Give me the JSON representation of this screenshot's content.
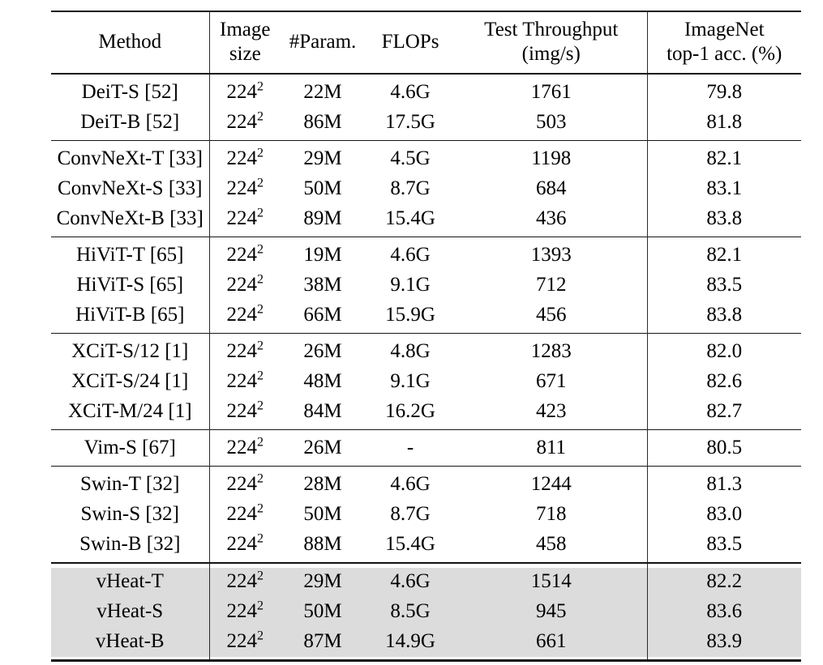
{
  "page": {
    "background": "#ffffff",
    "text_color": "#000000",
    "rule_color": "#121212",
    "highlight_color": "#dcdcdc"
  },
  "table": {
    "header": [
      {
        "key": "method",
        "lines": [
          "Method"
        ]
      },
      {
        "key": "image-size",
        "lines": [
          "Image",
          "size"
        ]
      },
      {
        "key": "params",
        "lines": [
          "#Param."
        ]
      },
      {
        "key": "flops",
        "lines": [
          "FLOPs"
        ]
      },
      {
        "key": "throughput",
        "lines": [
          "Test Throughput",
          "(img/s)"
        ]
      },
      {
        "key": "imagenet-acc",
        "lines": [
          "ImageNet",
          "top-1 acc. (%)"
        ]
      }
    ],
    "groups": [
      {
        "name": "deit",
        "highlight": false,
        "rows": [
          {
            "method": "DeiT-S [52]",
            "image_size": {
              "base": "224",
              "exp": "2"
            },
            "params": "22M",
            "flops": "4.6G",
            "throughput": "1761",
            "acc": "79.8"
          },
          {
            "method": "DeiT-B [52]",
            "image_size": {
              "base": "224",
              "exp": "2"
            },
            "params": "86M",
            "flops": "17.5G",
            "throughput": "503",
            "acc": "81.8"
          }
        ]
      },
      {
        "name": "convnext",
        "highlight": false,
        "rows": [
          {
            "method": "ConvNeXt-T [33]",
            "image_size": {
              "base": "224",
              "exp": "2"
            },
            "params": "29M",
            "flops": "4.5G",
            "throughput": "1198",
            "acc": "82.1"
          },
          {
            "method": "ConvNeXt-S [33]",
            "image_size": {
              "base": "224",
              "exp": "2"
            },
            "params": "50M",
            "flops": "8.7G",
            "throughput": "684",
            "acc": "83.1"
          },
          {
            "method": "ConvNeXt-B [33]",
            "image_size": {
              "base": "224",
              "exp": "2"
            },
            "params": "89M",
            "flops": "15.4G",
            "throughput": "436",
            "acc": "83.8"
          }
        ]
      },
      {
        "name": "hivit",
        "highlight": false,
        "rows": [
          {
            "method": "HiViT-T [65]",
            "image_size": {
              "base": "224",
              "exp": "2"
            },
            "params": "19M",
            "flops": "4.6G",
            "throughput": "1393",
            "acc": "82.1"
          },
          {
            "method": "HiViT-S [65]",
            "image_size": {
              "base": "224",
              "exp": "2"
            },
            "params": "38M",
            "flops": "9.1G",
            "throughput": "712",
            "acc": "83.5"
          },
          {
            "method": "HiViT-B [65]",
            "image_size": {
              "base": "224",
              "exp": "2"
            },
            "params": "66M",
            "flops": "15.9G",
            "throughput": "456",
            "acc": "83.8"
          }
        ]
      },
      {
        "name": "xcit",
        "highlight": false,
        "rows": [
          {
            "method": "XCiT-S/12 [1]",
            "image_size": {
              "base": "224",
              "exp": "2"
            },
            "params": "26M",
            "flops": "4.8G",
            "throughput": "1283",
            "acc": "82.0"
          },
          {
            "method": "XCiT-S/24 [1]",
            "image_size": {
              "base": "224",
              "exp": "2"
            },
            "params": "48M",
            "flops": "9.1G",
            "throughput": "671",
            "acc": "82.6"
          },
          {
            "method": "XCiT-M/24 [1]",
            "image_size": {
              "base": "224",
              "exp": "2"
            },
            "params": "84M",
            "flops": "16.2G",
            "throughput": "423",
            "acc": "82.7"
          }
        ]
      },
      {
        "name": "vim",
        "highlight": false,
        "rows": [
          {
            "method": "Vim-S [67]",
            "image_size": {
              "base": "224",
              "exp": "2"
            },
            "params": "26M",
            "flops": "-",
            "throughput": "811",
            "acc": "80.5"
          }
        ]
      },
      {
        "name": "swin",
        "highlight": false,
        "rows": [
          {
            "method": "Swin-T [32]",
            "image_size": {
              "base": "224",
              "exp": "2"
            },
            "params": "28M",
            "flops": "4.6G",
            "throughput": "1244",
            "acc": "81.3"
          },
          {
            "method": "Swin-S [32]",
            "image_size": {
              "base": "224",
              "exp": "2"
            },
            "params": "50M",
            "flops": "8.7G",
            "throughput": "718",
            "acc": "83.0"
          },
          {
            "method": "Swin-B [32]",
            "image_size": {
              "base": "224",
              "exp": "2"
            },
            "params": "88M",
            "flops": "15.4G",
            "throughput": "458",
            "acc": "83.5"
          }
        ]
      },
      {
        "name": "vheat",
        "highlight": true,
        "rows": [
          {
            "method": "vHeat-T",
            "image_size": {
              "base": "224",
              "exp": "2"
            },
            "params": "29M",
            "flops": "4.6G",
            "throughput": "1514",
            "acc": "82.2"
          },
          {
            "method": "vHeat-S",
            "image_size": {
              "base": "224",
              "exp": "2"
            },
            "params": "50M",
            "flops": "8.5G",
            "throughput": "945",
            "acc": "83.6"
          },
          {
            "method": "vHeat-B",
            "image_size": {
              "base": "224",
              "exp": "2"
            },
            "params": "87M",
            "flops": "14.9G",
            "throughput": "661",
            "acc": "83.9"
          }
        ]
      }
    ]
  }
}
